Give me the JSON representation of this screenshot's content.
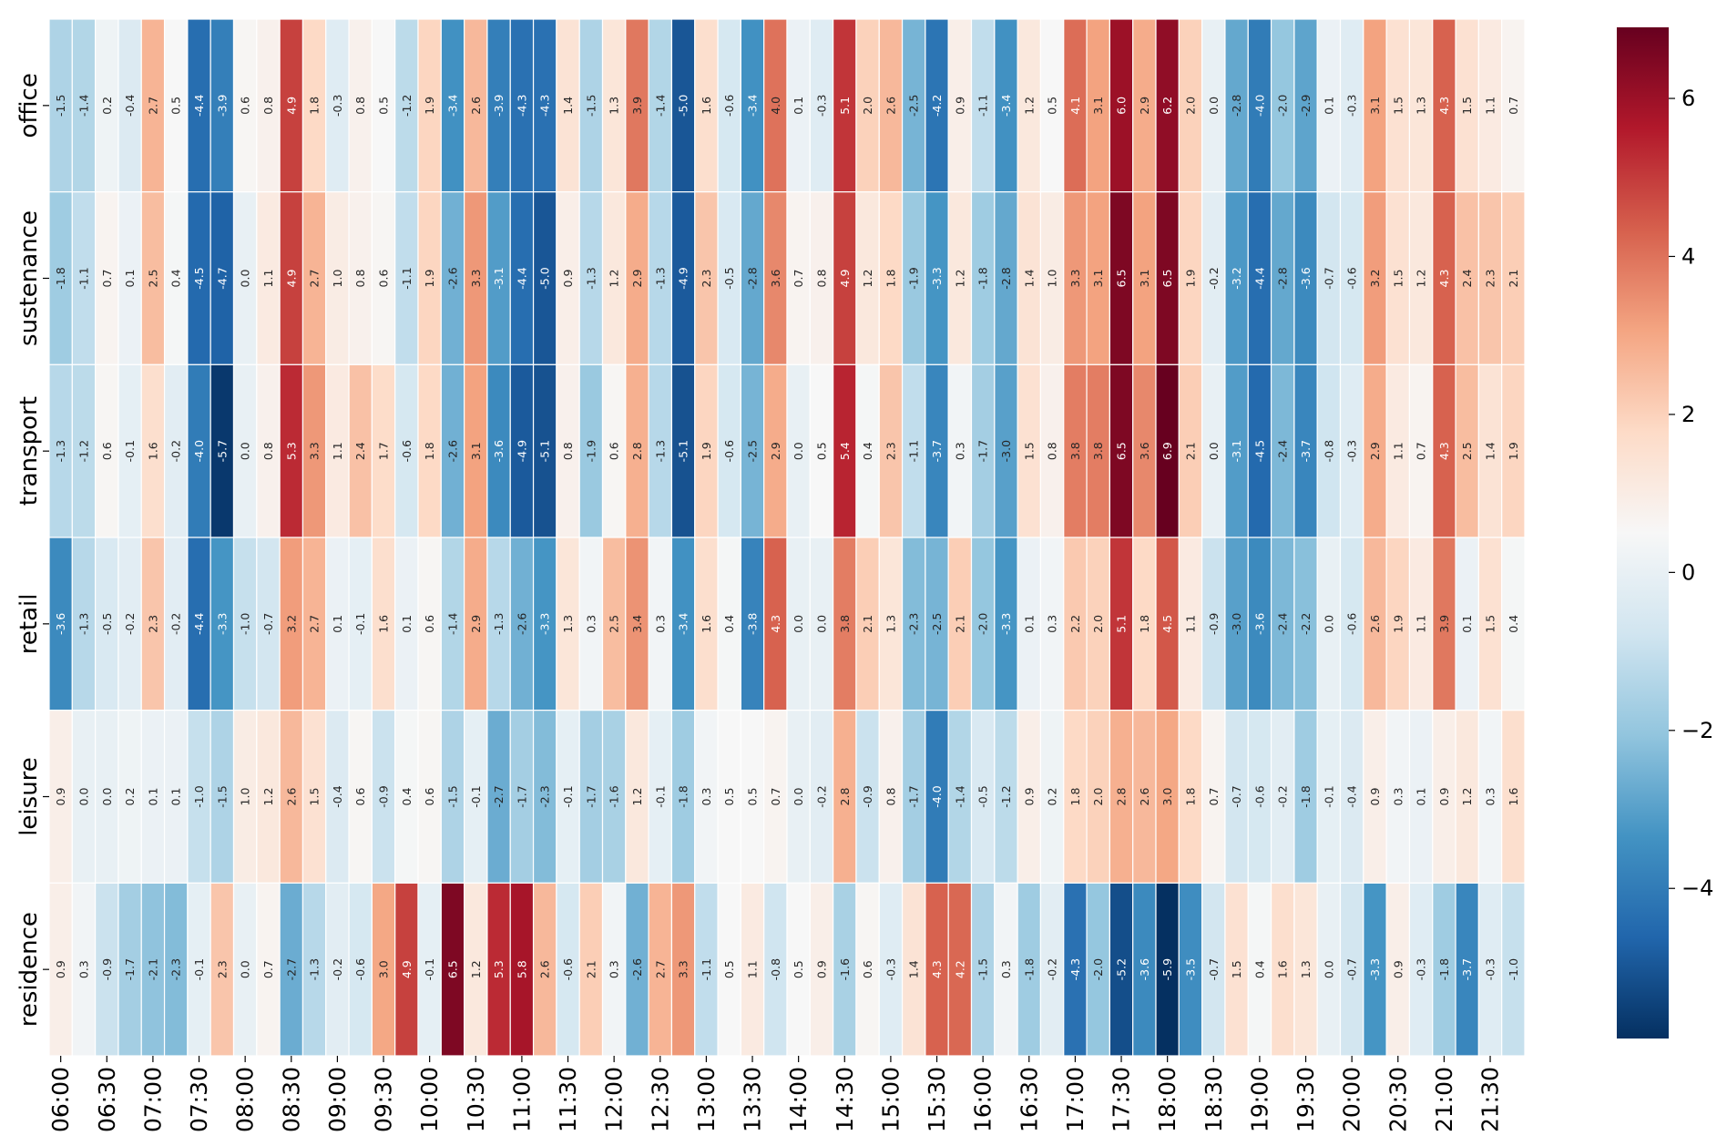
{
  "chart_data": {
    "type": "heatmap",
    "title": "",
    "xlabel": "",
    "ylabel": "",
    "rows": [
      "office",
      "sustenance",
      "transport",
      "retail",
      "leisure",
      "residence"
    ],
    "columns": [
      "06:00",
      "06:15",
      "06:30",
      "06:45",
      "07:00",
      "07:15",
      "07:30",
      "07:45",
      "08:00",
      "08:15",
      "08:30",
      "08:45",
      "09:00",
      "09:15",
      "09:30",
      "09:45",
      "10:00",
      "10:15",
      "10:30",
      "10:45",
      "11:00",
      "11:15",
      "11:30",
      "11:45",
      "12:00",
      "12:15",
      "12:30",
      "12:45",
      "13:00",
      "13:15",
      "13:30",
      "13:45",
      "14:00",
      "14:15",
      "14:30",
      "14:45",
      "15:00",
      "15:15",
      "15:30",
      "15:45",
      "16:00",
      "16:15",
      "16:30",
      "16:45",
      "17:00",
      "17:15",
      "17:30",
      "17:45",
      "18:00",
      "18:15",
      "18:30",
      "18:45",
      "19:00",
      "19:15",
      "19:30",
      "19:45",
      "20:00",
      "20:15",
      "20:30",
      "20:45",
      "21:00",
      "21:15",
      "21:30",
      "21:45"
    ],
    "x_tick_labels": [
      "06:00",
      "06:30",
      "07:00",
      "07:30",
      "08:00",
      "08:30",
      "09:00",
      "09:30",
      "10:00",
      "10:30",
      "11:00",
      "11:30",
      "12:00",
      "12:30",
      "13:00",
      "13:30",
      "14:00",
      "14:30",
      "15:00",
      "15:30",
      "16:00",
      "16:30",
      "17:00",
      "17:30",
      "18:00",
      "18:30",
      "19:00",
      "19:30",
      "20:00",
      "20:30",
      "21:00",
      "21:30"
    ],
    "values": [
      [
        -1.5,
        -1.4,
        0.2,
        -0.4,
        2.7,
        0.5,
        -4.4,
        -3.9,
        0.6,
        0.8,
        4.9,
        1.8,
        -0.3,
        0.8,
        0.5,
        -1.2,
        1.9,
        -3.4,
        2.6,
        -3.9,
        -4.3,
        -4.3,
        1.4,
        -1.5,
        1.3,
        3.9,
        -1.4,
        -5.0,
        1.6,
        -0.6,
        -3.4,
        4.0,
        0.1,
        -0.3,
        5.1,
        2.0,
        2.6,
        -2.5,
        -4.2,
        0.9,
        -1.1,
        -3.4,
        1.2,
        0.5,
        4.1,
        3.1,
        6.0,
        2.9,
        6.2,
        2.0,
        0.0,
        -2.8,
        -4.0,
        -2.0,
        -2.9,
        0.1,
        -0.3,
        3.1,
        1.5,
        1.3,
        4.3,
        1.5,
        1.1,
        0.7
      ],
      [
        -1.8,
        -1.1,
        0.7,
        0.1,
        2.5,
        0.4,
        -4.5,
        -4.7,
        0.0,
        1.1,
        4.9,
        2.7,
        1.0,
        0.8,
        0.6,
        -1.1,
        1.9,
        -2.6,
        3.3,
        -3.1,
        -4.4,
        -5.0,
        0.9,
        -1.3,
        1.2,
        2.9,
        -1.3,
        -4.9,
        2.3,
        -0.5,
        -2.8,
        3.6,
        0.7,
        0.8,
        4.9,
        1.2,
        1.8,
        -1.9,
        -3.3,
        1.2,
        -1.8,
        -2.8,
        1.4,
        1.0,
        3.3,
        3.1,
        6.5,
        3.1,
        6.5,
        1.9,
        -0.2,
        -3.2,
        -4.4,
        -2.8,
        -3.6,
        -0.7,
        -0.6,
        3.2,
        1.5,
        1.2,
        4.3,
        2.4,
        2.3,
        2.1
      ],
      [
        -1.3,
        -1.2,
        0.6,
        -0.1,
        1.6,
        -0.2,
        -4.0,
        -5.7,
        0.0,
        0.8,
        5.3,
        3.3,
        1.1,
        2.4,
        1.7,
        -0.6,
        1.8,
        -2.6,
        3.1,
        -3.6,
        -4.9,
        -5.1,
        0.8,
        -1.9,
        0.6,
        2.8,
        -1.3,
        -5.1,
        1.9,
        -0.6,
        -2.5,
        2.9,
        -0.0,
        0.5,
        5.4,
        0.4,
        2.3,
        -1.1,
        -3.7,
        0.3,
        -1.7,
        -3.0,
        1.5,
        0.8,
        3.8,
        3.8,
        6.5,
        3.6,
        6.9,
        2.1,
        0.0,
        -3.1,
        -4.5,
        -2.4,
        -3.7,
        -0.8,
        -0.3,
        2.9,
        1.1,
        0.7,
        4.3,
        2.5,
        1.4,
        1.9
      ],
      [
        -3.6,
        -1.3,
        -0.5,
        -0.2,
        2.3,
        -0.2,
        -4.4,
        -3.3,
        -1.0,
        -0.7,
        3.2,
        2.7,
        0.1,
        -0.1,
        1.6,
        0.1,
        0.6,
        -1.4,
        2.9,
        -1.3,
        -2.6,
        -3.3,
        1.3,
        0.3,
        2.5,
        3.4,
        0.3,
        -3.4,
        1.6,
        0.4,
        -3.8,
        4.3,
        0.0,
        0.0,
        3.8,
        2.1,
        1.3,
        -2.3,
        -2.5,
        2.1,
        -2.0,
        -3.3,
        0.1,
        0.3,
        2.2,
        2.0,
        5.1,
        1.8,
        4.5,
        1.1,
        -0.9,
        -3.0,
        -3.6,
        -2.4,
        -2.2,
        0.0,
        -0.6,
        2.6,
        1.9,
        1.1,
        3.9,
        0.1,
        1.5,
        0.4
      ],
      [
        0.9,
        0.0,
        0.0,
        0.2,
        0.1,
        0.1,
        -1.0,
        -1.5,
        1.0,
        1.2,
        2.6,
        1.5,
        -0.4,
        0.6,
        -0.9,
        0.4,
        0.6,
        -1.5,
        -0.1,
        -2.7,
        -1.7,
        -2.3,
        -0.1,
        -1.7,
        -1.6,
        1.2,
        -0.1,
        -1.8,
        0.3,
        0.5,
        0.5,
        0.7,
        0.0,
        -0.2,
        2.8,
        -0.9,
        0.8,
        -1.7,
        -4.0,
        -1.4,
        -0.5,
        -1.2,
        0.9,
        0.2,
        1.8,
        2.0,
        2.8,
        2.6,
        3.0,
        1.8,
        0.7,
        -0.7,
        -0.6,
        -0.2,
        -1.8,
        -0.1,
        -0.4,
        0.9,
        0.3,
        0.1,
        0.9,
        1.2,
        0.3,
        1.6
      ],
      [
        0.9,
        0.3,
        -0.9,
        -1.7,
        -2.1,
        -2.3,
        -0.1,
        2.3,
        0.0,
        0.7,
        -2.7,
        -1.3,
        -0.2,
        -0.6,
        3.0,
        4.9,
        -0.1,
        6.5,
        1.2,
        5.3,
        5.8,
        2.6,
        -0.6,
        2.1,
        0.3,
        -2.6,
        2.7,
        3.3,
        -1.1,
        0.5,
        1.1,
        -0.8,
        0.5,
        0.9,
        -1.6,
        0.6,
        -0.3,
        1.4,
        4.3,
        4.2,
        -1.5,
        0.3,
        -1.8,
        -0.2,
        -4.3,
        -2.0,
        -5.2,
        -3.6,
        -5.9,
        -3.5,
        -0.7,
        1.5,
        0.4,
        1.6,
        1.3,
        0.0,
        -0.7,
        -3.3,
        0.9,
        -0.3,
        -1.8,
        -3.7,
        -0.3,
        -1.0
      ]
    ],
    "colorscale": "RdBu_r",
    "vmin": -5.9,
    "vmax": 6.9,
    "colorbar_ticks": [
      "6",
      "4",
      "2",
      "0",
      "−2",
      "−4"
    ],
    "grid": false,
    "legend": "colorbar-right"
  }
}
